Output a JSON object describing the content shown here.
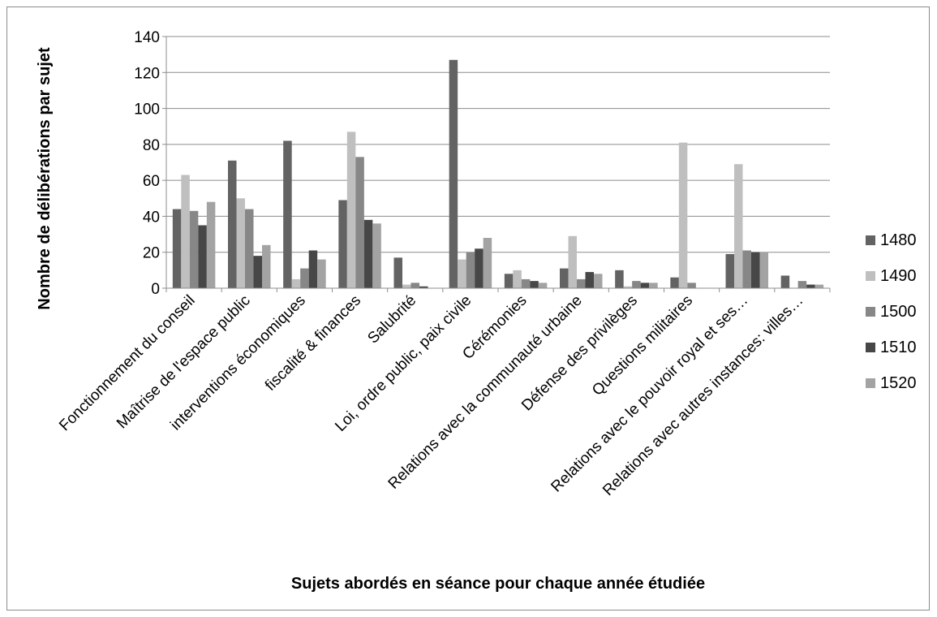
{
  "chart_data": {
    "type": "bar",
    "title": "",
    "xlabel": "Sujets abordés en séance pour chaque année étudiée",
    "ylabel": "Nombre de délibérations par sujet",
    "ylim": [
      0,
      140
    ],
    "yticks": [
      0,
      20,
      40,
      60,
      80,
      100,
      120,
      140
    ],
    "grid": true,
    "legend_position": "right",
    "categories": [
      "Fonctionnement du conseil",
      "Maîtrise de l'espace public",
      "interventions économiques",
      "fiscalité & finances",
      "Salubrité",
      "Loi, ordre public, paix civile",
      "Cérémonies",
      "Relations avec la communauté urbaine",
      "Défense des privilèges",
      "Questions militaires",
      "Relations avec le pouvoir royal et ses…",
      "Relations avec autres instances: villes…"
    ],
    "series": [
      {
        "name": "1480",
        "color": "#636363",
        "values": [
          44,
          71,
          82,
          49,
          17,
          127,
          8,
          11,
          10,
          6,
          19,
          7
        ]
      },
      {
        "name": "1490",
        "color": "#bfbfbf",
        "values": [
          63,
          50,
          5,
          87,
          2,
          16,
          10,
          29,
          1,
          81,
          69,
          0
        ]
      },
      {
        "name": "1500",
        "color": "#878787",
        "values": [
          43,
          44,
          11,
          73,
          3,
          20,
          5,
          5,
          4,
          3,
          21,
          4
        ]
      },
      {
        "name": "1510",
        "color": "#474747",
        "values": [
          35,
          18,
          21,
          38,
          1,
          22,
          4,
          9,
          3,
          0,
          20,
          2
        ]
      },
      {
        "name": "1520",
        "color": "#a3a3a3",
        "values": [
          48,
          24,
          16,
          36,
          0,
          28,
          3,
          8,
          3,
          0,
          20,
          2
        ]
      }
    ]
  }
}
